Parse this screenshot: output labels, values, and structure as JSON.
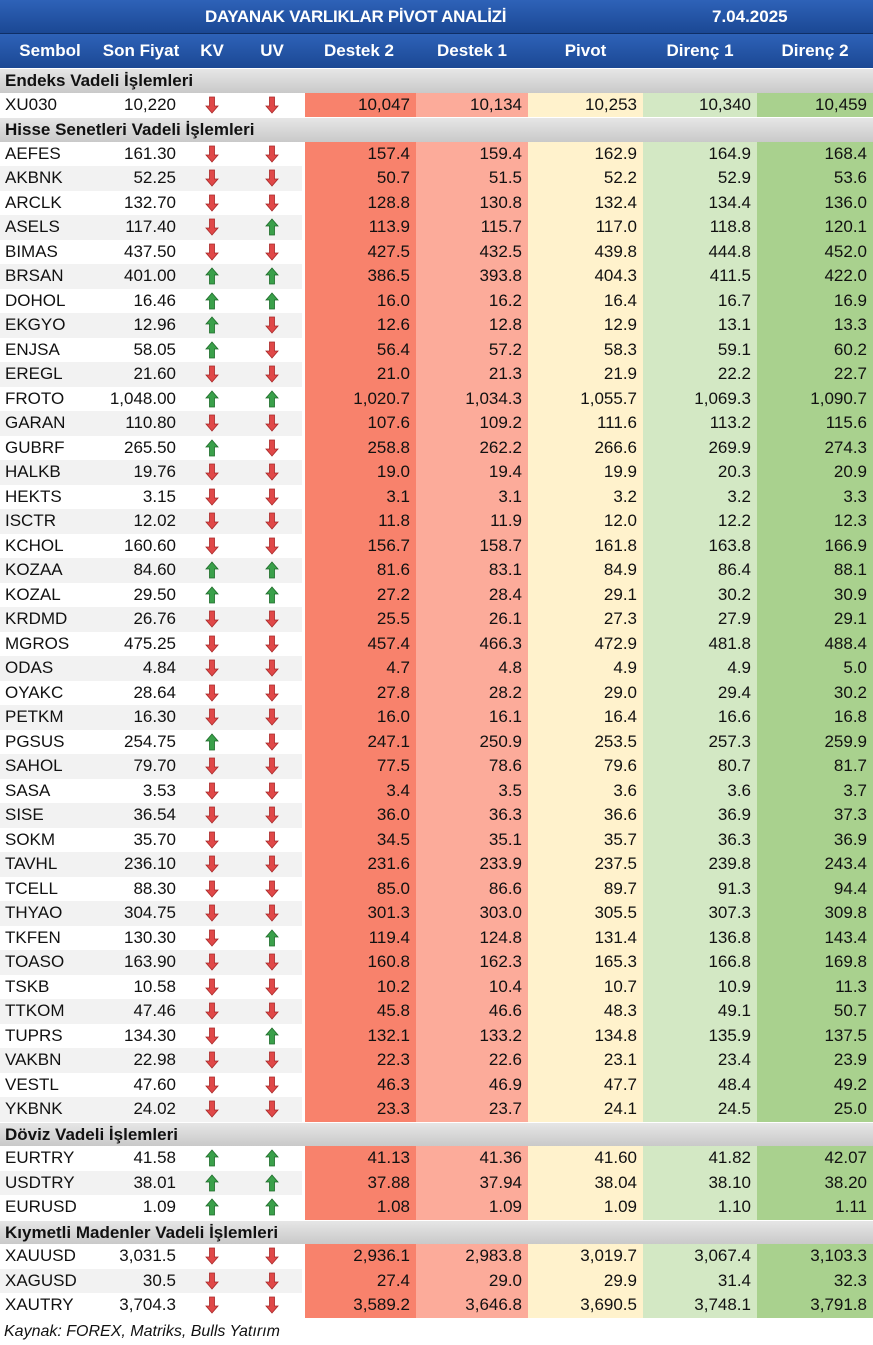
{
  "title": "DAYANAK VARLIKLAR PİVOT ANALİZİ",
  "date": "7.04.2025",
  "columns": [
    "Sembol",
    "Son Fiyat",
    "KV",
    "UV",
    "Destek 2",
    "Destek 1",
    "Pivot",
    "Direnç 1",
    "Direnç 2"
  ],
  "colors": {
    "header": "#1f4e9a",
    "destek2": "#f8826c",
    "destek1": "#fcab9a",
    "pivot": "#fff2cc",
    "direnc1": "#d3e8c4",
    "direnc2": "#a9d18e",
    "up": "#3aa04a",
    "down": "#e04848"
  },
  "sections": [
    {
      "name": "Endeks Vadeli İşlemleri",
      "rows": [
        [
          "XU030",
          "10,220",
          "down",
          "down",
          "10,047",
          "10,134",
          "10,253",
          "10,340",
          "10,459"
        ]
      ]
    },
    {
      "name": "Hisse Senetleri Vadeli İşlemleri",
      "rows": [
        [
          "AEFES",
          "161.30",
          "down",
          "down",
          "157.4",
          "159.4",
          "162.9",
          "164.9",
          "168.4"
        ],
        [
          "AKBNK",
          "52.25",
          "down",
          "down",
          "50.7",
          "51.5",
          "52.2",
          "52.9",
          "53.6"
        ],
        [
          "ARCLK",
          "132.70",
          "down",
          "down",
          "128.8",
          "130.8",
          "132.4",
          "134.4",
          "136.0"
        ],
        [
          "ASELS",
          "117.40",
          "down",
          "up",
          "113.9",
          "115.7",
          "117.0",
          "118.8",
          "120.1"
        ],
        [
          "BIMAS",
          "437.50",
          "down",
          "down",
          "427.5",
          "432.5",
          "439.8",
          "444.8",
          "452.0"
        ],
        [
          "BRSAN",
          "401.00",
          "up",
          "up",
          "386.5",
          "393.8",
          "404.3",
          "411.5",
          "422.0"
        ],
        [
          "DOHOL",
          "16.46",
          "up",
          "up",
          "16.0",
          "16.2",
          "16.4",
          "16.7",
          "16.9"
        ],
        [
          "EKGYO",
          "12.96",
          "up",
          "down",
          "12.6",
          "12.8",
          "12.9",
          "13.1",
          "13.3"
        ],
        [
          "ENJSA",
          "58.05",
          "up",
          "down",
          "56.4",
          "57.2",
          "58.3",
          "59.1",
          "60.2"
        ],
        [
          "EREGL",
          "21.60",
          "down",
          "down",
          "21.0",
          "21.3",
          "21.9",
          "22.2",
          "22.7"
        ],
        [
          "FROTO",
          "1,048.00",
          "up",
          "up",
          "1,020.7",
          "1,034.3",
          "1,055.7",
          "1,069.3",
          "1,090.7"
        ],
        [
          "GARAN",
          "110.80",
          "down",
          "down",
          "107.6",
          "109.2",
          "111.6",
          "113.2",
          "115.6"
        ],
        [
          "GUBRF",
          "265.50",
          "up",
          "down",
          "258.8",
          "262.2",
          "266.6",
          "269.9",
          "274.3"
        ],
        [
          "HALKB",
          "19.76",
          "down",
          "down",
          "19.0",
          "19.4",
          "19.9",
          "20.3",
          "20.9"
        ],
        [
          "HEKTS",
          "3.15",
          "down",
          "down",
          "3.1",
          "3.1",
          "3.2",
          "3.2",
          "3.3"
        ],
        [
          "ISCTR",
          "12.02",
          "down",
          "down",
          "11.8",
          "11.9",
          "12.0",
          "12.2",
          "12.3"
        ],
        [
          "KCHOL",
          "160.60",
          "down",
          "down",
          "156.7",
          "158.7",
          "161.8",
          "163.8",
          "166.9"
        ],
        [
          "KOZAA",
          "84.60",
          "up",
          "up",
          "81.6",
          "83.1",
          "84.9",
          "86.4",
          "88.1"
        ],
        [
          "KOZAL",
          "29.50",
          "up",
          "up",
          "27.2",
          "28.4",
          "29.1",
          "30.2",
          "30.9"
        ],
        [
          "KRDMD",
          "26.76",
          "down",
          "down",
          "25.5",
          "26.1",
          "27.3",
          "27.9",
          "29.1"
        ],
        [
          "MGROS",
          "475.25",
          "down",
          "down",
          "457.4",
          "466.3",
          "472.9",
          "481.8",
          "488.4"
        ],
        [
          "ODAS",
          "4.84",
          "down",
          "down",
          "4.7",
          "4.8",
          "4.9",
          "4.9",
          "5.0"
        ],
        [
          "OYAKC",
          "28.64",
          "down",
          "down",
          "27.8",
          "28.2",
          "29.0",
          "29.4",
          "30.2"
        ],
        [
          "PETKM",
          "16.30",
          "down",
          "down",
          "16.0",
          "16.1",
          "16.4",
          "16.6",
          "16.8"
        ],
        [
          "PGSUS",
          "254.75",
          "up",
          "down",
          "247.1",
          "250.9",
          "253.5",
          "257.3",
          "259.9"
        ],
        [
          "SAHOL",
          "79.70",
          "down",
          "down",
          "77.5",
          "78.6",
          "79.6",
          "80.7",
          "81.7"
        ],
        [
          "SASA",
          "3.53",
          "down",
          "down",
          "3.4",
          "3.5",
          "3.6",
          "3.6",
          "3.7"
        ],
        [
          "SISE",
          "36.54",
          "down",
          "down",
          "36.0",
          "36.3",
          "36.6",
          "36.9",
          "37.3"
        ],
        [
          "SOKM",
          "35.70",
          "down",
          "down",
          "34.5",
          "35.1",
          "35.7",
          "36.3",
          "36.9"
        ],
        [
          "TAVHL",
          "236.10",
          "down",
          "down",
          "231.6",
          "233.9",
          "237.5",
          "239.8",
          "243.4"
        ],
        [
          "TCELL",
          "88.30",
          "down",
          "down",
          "85.0",
          "86.6",
          "89.7",
          "91.3",
          "94.4"
        ],
        [
          "THYAO",
          "304.75",
          "down",
          "down",
          "301.3",
          "303.0",
          "305.5",
          "307.3",
          "309.8"
        ],
        [
          "TKFEN",
          "130.30",
          "down",
          "up",
          "119.4",
          "124.8",
          "131.4",
          "136.8",
          "143.4"
        ],
        [
          "TOASO",
          "163.90",
          "down",
          "down",
          "160.8",
          "162.3",
          "165.3",
          "166.8",
          "169.8"
        ],
        [
          "TSKB",
          "10.58",
          "down",
          "down",
          "10.2",
          "10.4",
          "10.7",
          "10.9",
          "11.3"
        ],
        [
          "TTKOM",
          "47.46",
          "down",
          "down",
          "45.8",
          "46.6",
          "48.3",
          "49.1",
          "50.7"
        ],
        [
          "TUPRS",
          "134.30",
          "down",
          "up",
          "132.1",
          "133.2",
          "134.8",
          "135.9",
          "137.5"
        ],
        [
          "VAKBN",
          "22.98",
          "down",
          "down",
          "22.3",
          "22.6",
          "23.1",
          "23.4",
          "23.9"
        ],
        [
          "VESTL",
          "47.60",
          "down",
          "down",
          "46.3",
          "46.9",
          "47.7",
          "48.4",
          "49.2"
        ],
        [
          "YKBNK",
          "24.02",
          "down",
          "down",
          "23.3",
          "23.7",
          "24.1",
          "24.5",
          "25.0"
        ]
      ]
    },
    {
      "name": "Döviz Vadeli İşlemleri",
      "rows": [
        [
          "EURTRY",
          "41.58",
          "up",
          "up",
          "41.13",
          "41.36",
          "41.60",
          "41.82",
          "42.07"
        ],
        [
          "USDTRY",
          "38.01",
          "up",
          "up",
          "37.88",
          "37.94",
          "38.04",
          "38.10",
          "38.20"
        ],
        [
          "EURUSD",
          "1.09",
          "up",
          "up",
          "1.08",
          "1.09",
          "1.09",
          "1.10",
          "1.11"
        ]
      ]
    },
    {
      "name": "Kıymetli Madenler Vadeli İşlemleri",
      "rows": [
        [
          "XAUUSD",
          "3,031.5",
          "down",
          "down",
          "2,936.1",
          "2,983.8",
          "3,019.7",
          "3,067.4",
          "3,103.3"
        ],
        [
          "XAGUSD",
          "30.5",
          "down",
          "down",
          "27.4",
          "29.0",
          "29.9",
          "31.4",
          "32.3"
        ],
        [
          "XAUTRY",
          "3,704.3",
          "down",
          "down",
          "3,589.2",
          "3,646.8",
          "3,690.5",
          "3,748.1",
          "3,791.8"
        ]
      ]
    }
  ],
  "footer": "Kaynak: FOREX, Matriks, Bulls Yatırım"
}
